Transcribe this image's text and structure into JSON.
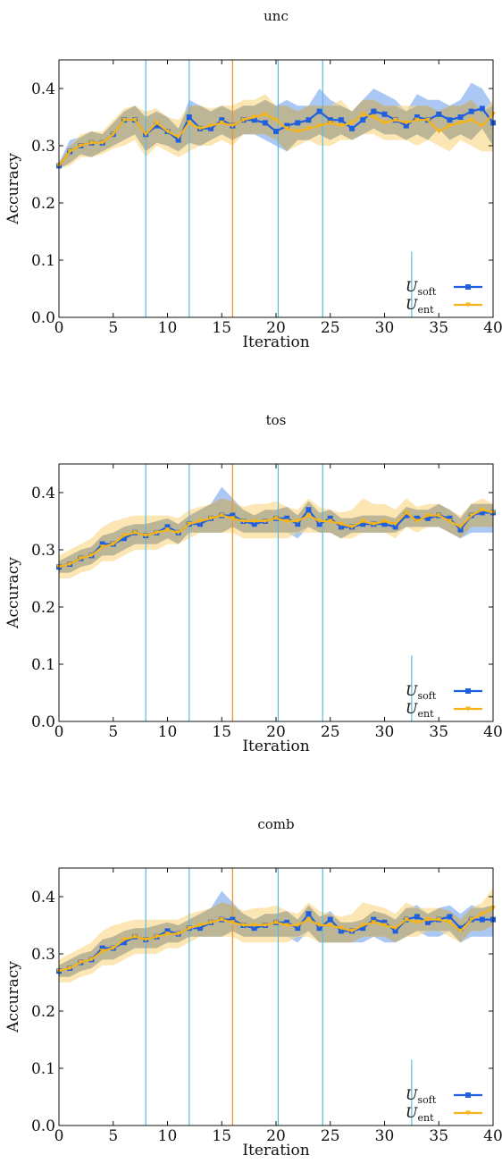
{
  "colors": {
    "soft": "#1f5fe0",
    "soft_band": "#8fb4f0",
    "ent": "#f4b41a",
    "ent_band": "#fbd98a",
    "overlap": "#b9b394",
    "vline_blue": "#5bb8e6",
    "vline_orange": "#e7962a"
  },
  "chart_data": [
    {
      "type": "line",
      "title": "unc",
      "xlabel": "Iteration",
      "ylabel": "Accuracy",
      "xlim": [
        0,
        40
      ],
      "ylim": [
        0,
        0.45
      ],
      "xticks": [
        0,
        5,
        10,
        15,
        20,
        25,
        30,
        35,
        40
      ],
      "yticks": [
        0.0,
        0.1,
        0.2,
        0.3,
        0.4
      ],
      "ytick_labels": [
        "0.0",
        "0.1",
        "0.2",
        "0.3",
        "0.4"
      ],
      "vlines_blue": [
        8,
        12,
        20.2,
        24.3,
        32.5
      ],
      "vline_orange": 16,
      "legend_loc": "lower right",
      "x": [
        0,
        1,
        2,
        3,
        4,
        5,
        6,
        7,
        8,
        9,
        10,
        11,
        12,
        13,
        14,
        15,
        16,
        17,
        18,
        19,
        20,
        21,
        22,
        23,
        24,
        25,
        26,
        27,
        28,
        29,
        30,
        31,
        32,
        33,
        34,
        35,
        36,
        37,
        38,
        39,
        40
      ],
      "series": [
        {
          "name": "U",
          "subscript": "soft",
          "values": [
            0.265,
            0.29,
            0.3,
            0.305,
            0.305,
            0.32,
            0.345,
            0.345,
            0.32,
            0.335,
            0.325,
            0.31,
            0.35,
            0.33,
            0.33,
            0.345,
            0.335,
            0.345,
            0.345,
            0.34,
            0.325,
            0.335,
            0.34,
            0.345,
            0.36,
            0.345,
            0.345,
            0.33,
            0.345,
            0.36,
            0.355,
            0.345,
            0.335,
            0.35,
            0.345,
            0.355,
            0.345,
            0.35,
            0.36,
            0.365,
            0.34
          ],
          "lower": [
            0.26,
            0.27,
            0.285,
            0.28,
            0.29,
            0.3,
            0.31,
            0.32,
            0.29,
            0.305,
            0.3,
            0.29,
            0.305,
            0.3,
            0.31,
            0.32,
            0.31,
            0.32,
            0.32,
            0.31,
            0.3,
            0.29,
            0.31,
            0.31,
            0.32,
            0.31,
            0.32,
            0.31,
            0.32,
            0.33,
            0.32,
            0.32,
            0.31,
            0.32,
            0.31,
            0.33,
            0.31,
            0.32,
            0.31,
            0.33,
            0.3
          ],
          "upper": [
            0.27,
            0.31,
            0.315,
            0.325,
            0.32,
            0.34,
            0.36,
            0.37,
            0.35,
            0.36,
            0.35,
            0.33,
            0.38,
            0.37,
            0.36,
            0.37,
            0.36,
            0.37,
            0.37,
            0.38,
            0.37,
            0.38,
            0.37,
            0.37,
            0.4,
            0.38,
            0.37,
            0.36,
            0.38,
            0.4,
            0.39,
            0.38,
            0.36,
            0.39,
            0.38,
            0.38,
            0.37,
            0.38,
            0.41,
            0.4,
            0.37
          ]
        },
        {
          "name": "U",
          "subscript": "ent",
          "values": [
            0.265,
            0.29,
            0.3,
            0.305,
            0.305,
            0.32,
            0.345,
            0.345,
            0.32,
            0.34,
            0.325,
            0.315,
            0.34,
            0.33,
            0.335,
            0.34,
            0.335,
            0.345,
            0.35,
            0.355,
            0.345,
            0.33,
            0.325,
            0.33,
            0.335,
            0.34,
            0.335,
            0.34,
            0.355,
            0.35,
            0.34,
            0.345,
            0.34,
            0.345,
            0.345,
            0.325,
            0.335,
            0.34,
            0.345,
            0.335,
            0.355
          ],
          "lower": [
            0.26,
            0.265,
            0.28,
            0.28,
            0.285,
            0.295,
            0.3,
            0.31,
            0.28,
            0.3,
            0.29,
            0.28,
            0.29,
            0.3,
            0.3,
            0.31,
            0.3,
            0.32,
            0.32,
            0.32,
            0.31,
            0.29,
            0.3,
            0.31,
            0.3,
            0.3,
            0.31,
            0.31,
            0.32,
            0.32,
            0.31,
            0.31,
            0.31,
            0.3,
            0.31,
            0.3,
            0.29,
            0.31,
            0.3,
            0.29,
            0.29
          ],
          "upper": [
            0.27,
            0.3,
            0.32,
            0.325,
            0.325,
            0.345,
            0.365,
            0.37,
            0.36,
            0.365,
            0.35,
            0.345,
            0.37,
            0.37,
            0.365,
            0.37,
            0.37,
            0.38,
            0.38,
            0.39,
            0.37,
            0.37,
            0.36,
            0.37,
            0.37,
            0.37,
            0.38,
            0.36,
            0.38,
            0.38,
            0.37,
            0.37,
            0.37,
            0.37,
            0.37,
            0.36,
            0.37,
            0.37,
            0.38,
            0.36,
            0.38
          ]
        }
      ]
    },
    {
      "type": "line",
      "title": "tos",
      "xlabel": "Iteration",
      "ylabel": "Accuracy",
      "xlim": [
        0,
        40
      ],
      "ylim": [
        0,
        0.45
      ],
      "xticks": [
        0,
        5,
        10,
        15,
        20,
        25,
        30,
        35,
        40
      ],
      "yticks": [
        0.0,
        0.1,
        0.2,
        0.3,
        0.4
      ],
      "ytick_labels": [
        "0.0",
        "0.1",
        "0.2",
        "0.3",
        "0.4"
      ],
      "vlines_blue": [
        8,
        12,
        20.2,
        24.3,
        32.5
      ],
      "vline_orange": 16,
      "legend_loc": "lower right",
      "x": [
        0,
        1,
        2,
        3,
        4,
        5,
        6,
        7,
        8,
        9,
        10,
        11,
        12,
        13,
        14,
        15,
        16,
        17,
        18,
        19,
        20,
        21,
        22,
        23,
        24,
        25,
        26,
        27,
        28,
        29,
        30,
        31,
        32,
        33,
        34,
        35,
        36,
        37,
        38,
        39,
        40
      ],
      "series": [
        {
          "name": "U",
          "subscript": "soft",
          "values": [
            0.27,
            0.275,
            0.285,
            0.29,
            0.31,
            0.31,
            0.32,
            0.33,
            0.325,
            0.33,
            0.34,
            0.33,
            0.345,
            0.345,
            0.355,
            0.36,
            0.36,
            0.35,
            0.345,
            0.35,
            0.355,
            0.355,
            0.345,
            0.37,
            0.345,
            0.355,
            0.34,
            0.34,
            0.345,
            0.345,
            0.345,
            0.34,
            0.36,
            0.355,
            0.355,
            0.36,
            0.355,
            0.335,
            0.36,
            0.365,
            0.365
          ],
          "lower": [
            0.26,
            0.26,
            0.27,
            0.275,
            0.29,
            0.29,
            0.3,
            0.31,
            0.31,
            0.31,
            0.32,
            0.31,
            0.33,
            0.33,
            0.33,
            0.33,
            0.34,
            0.33,
            0.33,
            0.33,
            0.33,
            0.33,
            0.32,
            0.34,
            0.33,
            0.33,
            0.32,
            0.33,
            0.33,
            0.33,
            0.33,
            0.33,
            0.34,
            0.34,
            0.34,
            0.34,
            0.33,
            0.32,
            0.33,
            0.33,
            0.33
          ],
          "upper": [
            0.28,
            0.29,
            0.3,
            0.305,
            0.325,
            0.33,
            0.34,
            0.345,
            0.345,
            0.35,
            0.355,
            0.345,
            0.36,
            0.37,
            0.38,
            0.41,
            0.39,
            0.37,
            0.36,
            0.37,
            0.37,
            0.375,
            0.36,
            0.385,
            0.365,
            0.37,
            0.355,
            0.355,
            0.36,
            0.36,
            0.36,
            0.355,
            0.375,
            0.37,
            0.37,
            0.38,
            0.37,
            0.355,
            0.38,
            0.38,
            0.38
          ]
        },
        {
          "name": "U",
          "subscript": "ent",
          "values": [
            0.27,
            0.275,
            0.285,
            0.29,
            0.305,
            0.31,
            0.325,
            0.33,
            0.325,
            0.33,
            0.335,
            0.33,
            0.345,
            0.35,
            0.355,
            0.36,
            0.355,
            0.35,
            0.35,
            0.35,
            0.355,
            0.35,
            0.35,
            0.36,
            0.35,
            0.35,
            0.345,
            0.34,
            0.35,
            0.345,
            0.35,
            0.345,
            0.365,
            0.35,
            0.36,
            0.36,
            0.35,
            0.34,
            0.36,
            0.37,
            0.365
          ],
          "lower": [
            0.25,
            0.25,
            0.26,
            0.265,
            0.28,
            0.28,
            0.29,
            0.3,
            0.3,
            0.3,
            0.31,
            0.31,
            0.32,
            0.33,
            0.33,
            0.33,
            0.33,
            0.32,
            0.32,
            0.32,
            0.32,
            0.32,
            0.33,
            0.33,
            0.33,
            0.33,
            0.32,
            0.32,
            0.33,
            0.33,
            0.33,
            0.32,
            0.34,
            0.33,
            0.34,
            0.34,
            0.33,
            0.32,
            0.34,
            0.34,
            0.34
          ],
          "upper": [
            0.29,
            0.3,
            0.31,
            0.32,
            0.34,
            0.35,
            0.355,
            0.36,
            0.36,
            0.36,
            0.36,
            0.355,
            0.37,
            0.375,
            0.38,
            0.39,
            0.385,
            0.375,
            0.38,
            0.38,
            0.385,
            0.375,
            0.37,
            0.39,
            0.375,
            0.37,
            0.365,
            0.37,
            0.39,
            0.38,
            0.38,
            0.37,
            0.39,
            0.375,
            0.38,
            0.38,
            0.37,
            0.36,
            0.38,
            0.39,
            0.38
          ]
        }
      ]
    },
    {
      "type": "line",
      "title": "comb",
      "xlabel": "Iteration",
      "ylabel": "Accuracy",
      "xlim": [
        0,
        40
      ],
      "ylim": [
        0,
        0.45
      ],
      "xticks": [
        0,
        5,
        10,
        15,
        20,
        25,
        30,
        35,
        40
      ],
      "yticks": [
        0.0,
        0.1,
        0.2,
        0.3,
        0.4
      ],
      "ytick_labels": [
        "0.0",
        "0.1",
        "0.2",
        "0.3",
        "0.4"
      ],
      "vlines_blue": [
        8,
        12,
        20.2,
        24.3,
        32.5
      ],
      "vline_orange": 16,
      "legend_loc": "lower right",
      "x": [
        0,
        1,
        2,
        3,
        4,
        5,
        6,
        7,
        8,
        9,
        10,
        11,
        12,
        13,
        14,
        15,
        16,
        17,
        18,
        19,
        20,
        21,
        22,
        23,
        24,
        25,
        26,
        27,
        28,
        29,
        30,
        31,
        32,
        33,
        34,
        35,
        36,
        37,
        38,
        39,
        40
      ],
      "series": [
        {
          "name": "U",
          "subscript": "soft",
          "values": [
            0.27,
            0.275,
            0.285,
            0.29,
            0.31,
            0.31,
            0.32,
            0.33,
            0.325,
            0.33,
            0.34,
            0.335,
            0.345,
            0.345,
            0.355,
            0.36,
            0.36,
            0.35,
            0.345,
            0.35,
            0.355,
            0.355,
            0.345,
            0.37,
            0.345,
            0.36,
            0.34,
            0.34,
            0.345,
            0.36,
            0.355,
            0.34,
            0.36,
            0.365,
            0.355,
            0.36,
            0.365,
            0.345,
            0.36,
            0.36,
            0.36
          ],
          "lower": [
            0.26,
            0.26,
            0.27,
            0.275,
            0.29,
            0.29,
            0.3,
            0.31,
            0.31,
            0.31,
            0.32,
            0.32,
            0.33,
            0.33,
            0.33,
            0.33,
            0.34,
            0.33,
            0.33,
            0.33,
            0.33,
            0.33,
            0.32,
            0.34,
            0.32,
            0.32,
            0.32,
            0.32,
            0.32,
            0.33,
            0.32,
            0.32,
            0.33,
            0.34,
            0.33,
            0.33,
            0.34,
            0.32,
            0.33,
            0.33,
            0.33
          ],
          "upper": [
            0.28,
            0.29,
            0.3,
            0.305,
            0.325,
            0.33,
            0.34,
            0.345,
            0.345,
            0.35,
            0.355,
            0.35,
            0.36,
            0.37,
            0.38,
            0.41,
            0.39,
            0.37,
            0.36,
            0.37,
            0.37,
            0.375,
            0.36,
            0.385,
            0.365,
            0.375,
            0.355,
            0.355,
            0.36,
            0.375,
            0.37,
            0.36,
            0.38,
            0.385,
            0.37,
            0.38,
            0.385,
            0.37,
            0.385,
            0.38,
            0.385
          ]
        },
        {
          "name": "U",
          "subscript": "ent",
          "values": [
            0.27,
            0.275,
            0.285,
            0.29,
            0.305,
            0.31,
            0.325,
            0.33,
            0.325,
            0.33,
            0.335,
            0.335,
            0.345,
            0.35,
            0.355,
            0.36,
            0.355,
            0.35,
            0.35,
            0.35,
            0.355,
            0.35,
            0.35,
            0.36,
            0.35,
            0.35,
            0.345,
            0.34,
            0.35,
            0.355,
            0.35,
            0.345,
            0.36,
            0.355,
            0.36,
            0.36,
            0.355,
            0.34,
            0.36,
            0.37,
            0.38
          ],
          "lower": [
            0.25,
            0.25,
            0.26,
            0.265,
            0.28,
            0.28,
            0.29,
            0.3,
            0.3,
            0.3,
            0.31,
            0.31,
            0.32,
            0.33,
            0.33,
            0.33,
            0.33,
            0.32,
            0.32,
            0.32,
            0.32,
            0.32,
            0.33,
            0.33,
            0.32,
            0.32,
            0.32,
            0.32,
            0.33,
            0.33,
            0.33,
            0.32,
            0.33,
            0.33,
            0.34,
            0.34,
            0.33,
            0.32,
            0.34,
            0.34,
            0.35
          ],
          "upper": [
            0.29,
            0.3,
            0.31,
            0.32,
            0.34,
            0.35,
            0.355,
            0.36,
            0.36,
            0.36,
            0.36,
            0.36,
            0.37,
            0.375,
            0.38,
            0.39,
            0.385,
            0.375,
            0.38,
            0.38,
            0.385,
            0.375,
            0.37,
            0.39,
            0.375,
            0.37,
            0.365,
            0.37,
            0.39,
            0.385,
            0.38,
            0.37,
            0.39,
            0.38,
            0.38,
            0.38,
            0.375,
            0.36,
            0.38,
            0.39,
            0.415
          ]
        }
      ]
    }
  ]
}
